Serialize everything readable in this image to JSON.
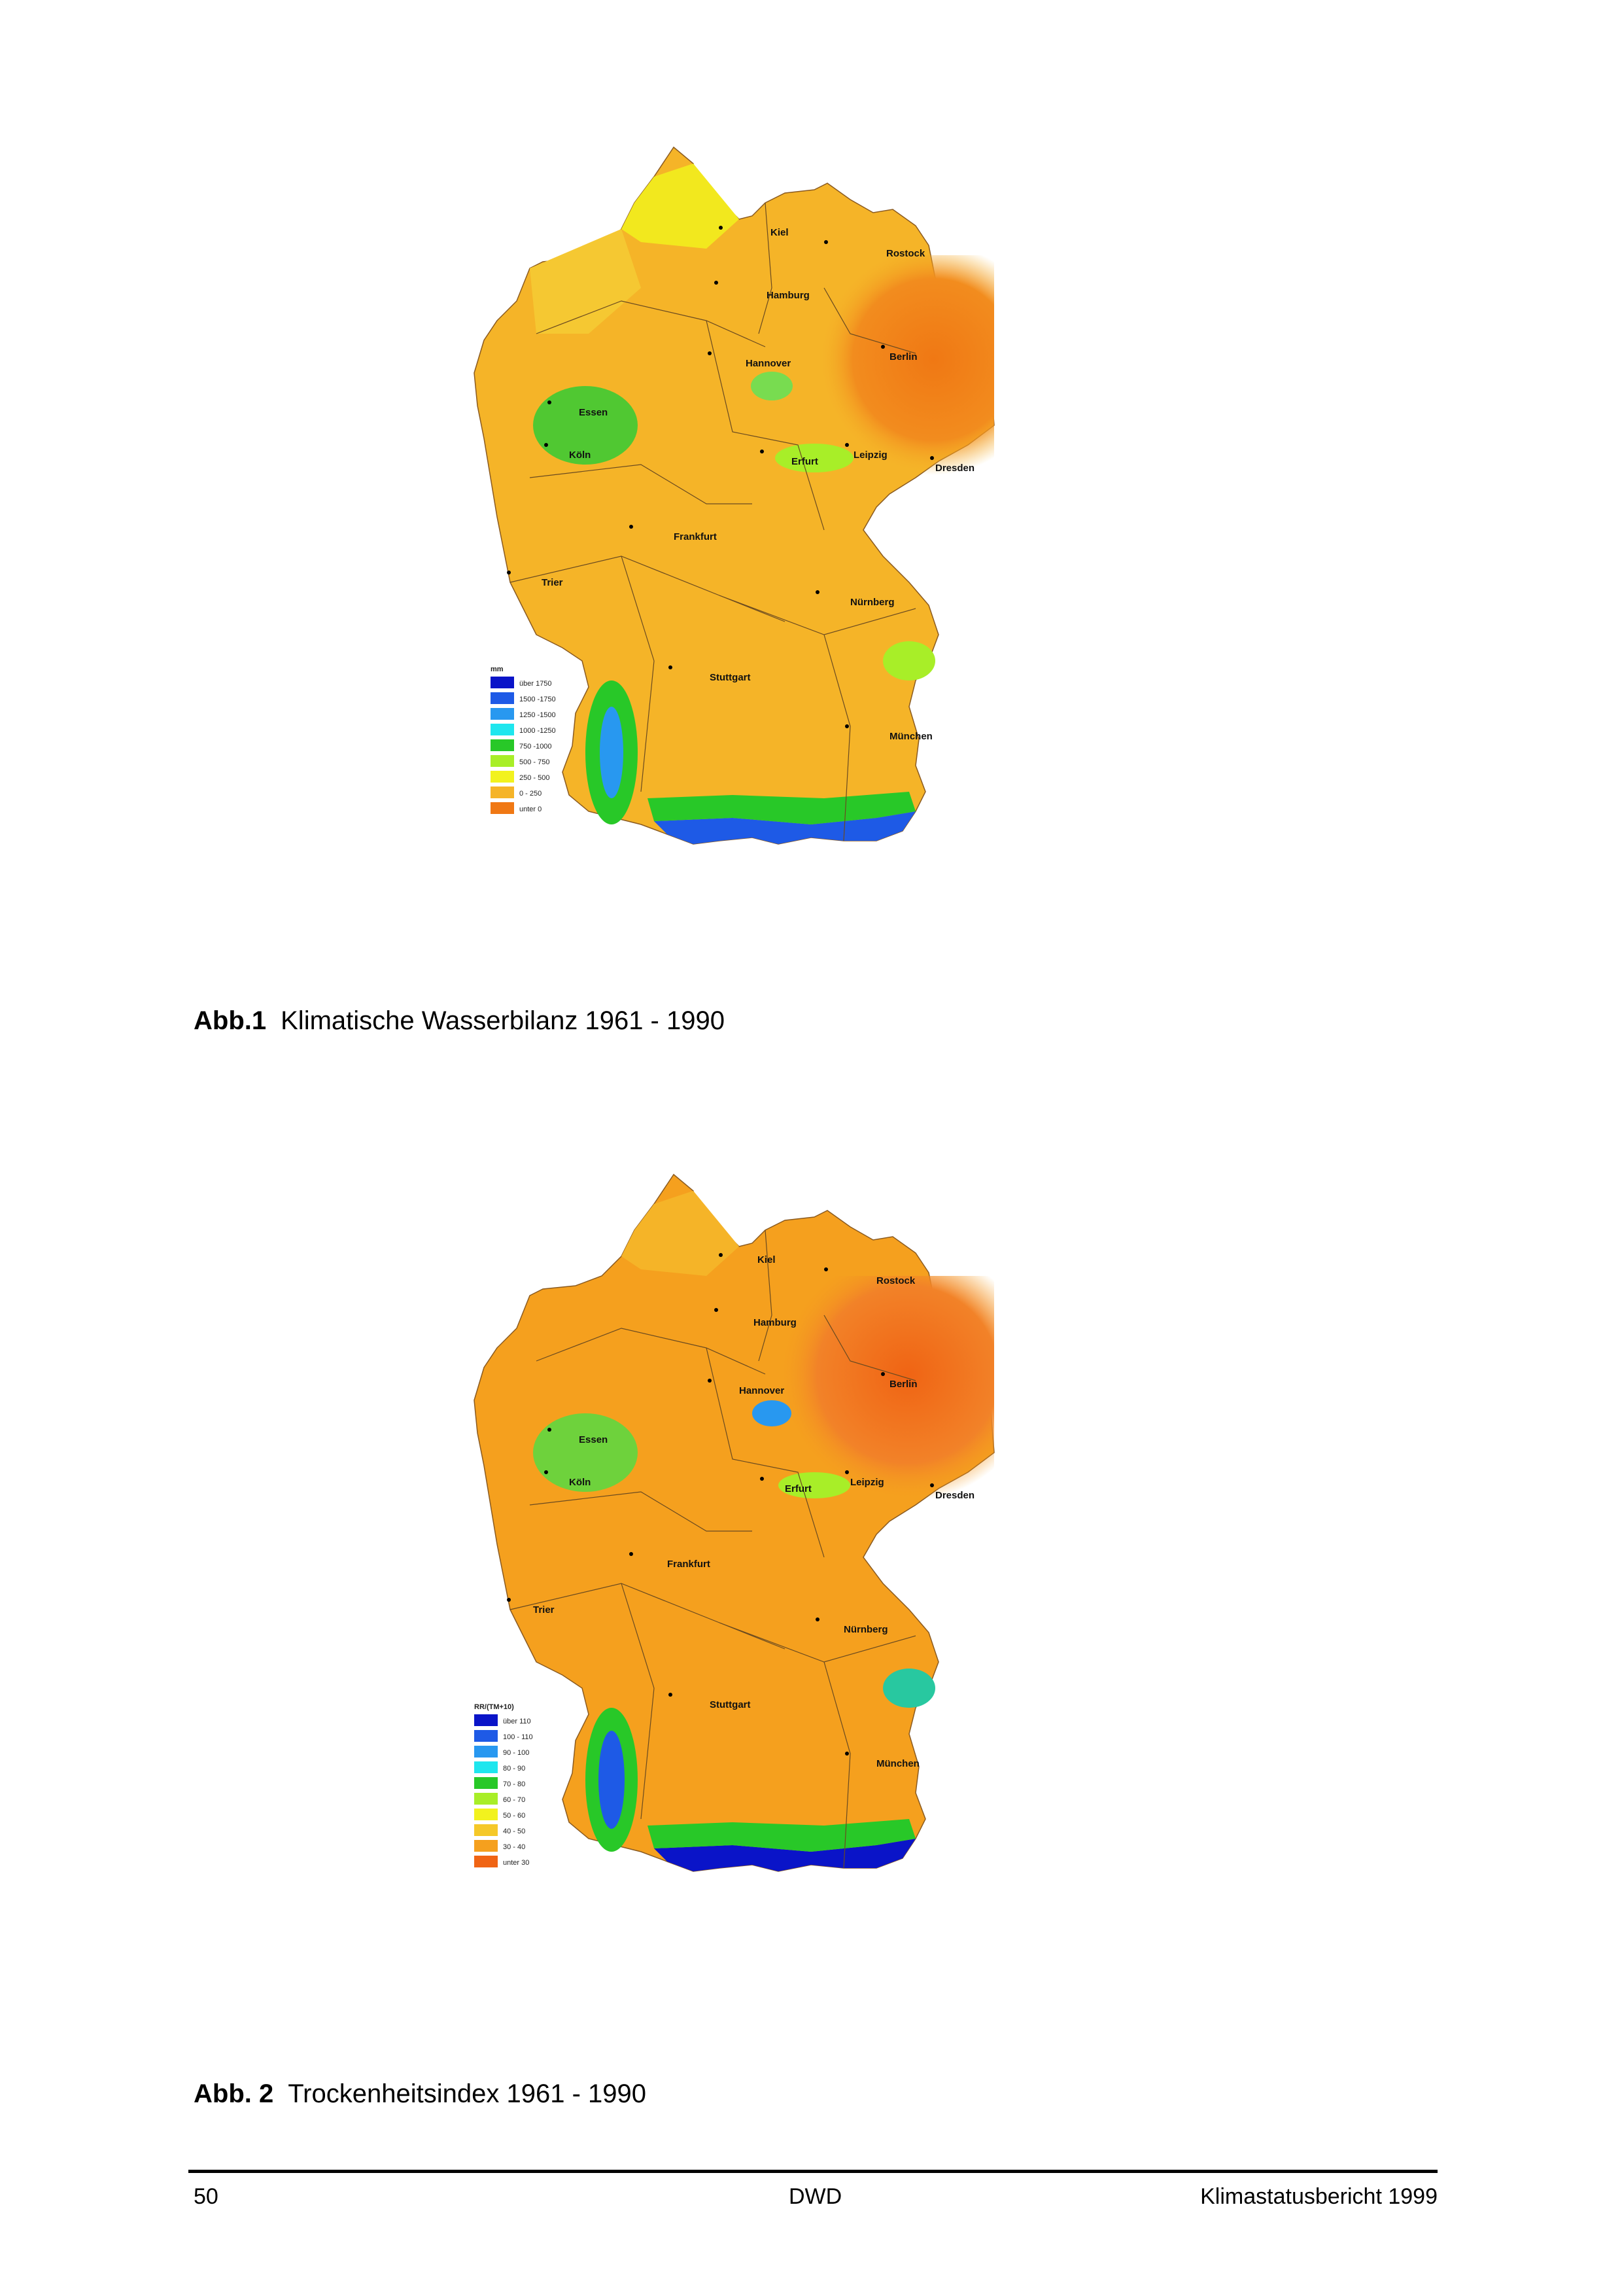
{
  "figures": [
    {
      "id": "map1",
      "caption_number": "Abb.1",
      "caption_text": "Klimatische Wasserbilanz 1961 - 1990",
      "legend_title": "mm",
      "legend": [
        {
          "label": "über  1750",
          "color": "#0a14c8"
        },
        {
          "label": "1500 -1750",
          "color": "#1e5ae6"
        },
        {
          "label": "1250 -1500",
          "color": "#2898f0"
        },
        {
          "label": "1000 -1250",
          "color": "#1ee6ee"
        },
        {
          "label": "750 -1000",
          "color": "#28c828"
        },
        {
          "label": "500 -  750",
          "color": "#a8ee28"
        },
        {
          "label": "250 -  500",
          "color": "#f2f21e"
        },
        {
          "label": "0 -  250",
          "color": "#f5b428"
        },
        {
          "label": "unter     0",
          "color": "#f07814"
        }
      ],
      "cities": [
        "Kiel",
        "Rostock",
        "Hamburg",
        "Hannover",
        "Berlin",
        "Essen",
        "Köln",
        "Erfurt",
        "Leipzig",
        "Dresden",
        "Frankfurt",
        "Trier",
        "Nürnberg",
        "Stuttgart",
        "München"
      ]
    },
    {
      "id": "map2",
      "caption_number": "Abb. 2",
      "caption_text": "Trockenheitsindex 1961 - 1990",
      "legend_title": "RR/(TM+10)",
      "legend": [
        {
          "label": "über  110",
          "color": "#0a14c8"
        },
        {
          "label": "100 - 110",
          "color": "#1e5ae6"
        },
        {
          "label": "90 - 100",
          "color": "#2898f0"
        },
        {
          "label": "80 -  90",
          "color": "#1ee6ee"
        },
        {
          "label": "70 -  80",
          "color": "#28c828"
        },
        {
          "label": "60 -  70",
          "color": "#a8ee28"
        },
        {
          "label": "50 -  60",
          "color": "#f2f21e"
        },
        {
          "label": "40 -  50",
          "color": "#f5c828"
        },
        {
          "label": "30 -  40",
          "color": "#f5a01e"
        },
        {
          "label": "unter   30",
          "color": "#f06414"
        }
      ],
      "cities": [
        "Kiel",
        "Rostock",
        "Hamburg",
        "Hannover",
        "Berlin",
        "Essen",
        "Köln",
        "Erfurt",
        "Leipzig",
        "Dresden",
        "Frankfurt",
        "Trier",
        "Nürnberg",
        "Stuttgart",
        "München"
      ]
    }
  ],
  "footer": {
    "page_number": "50",
    "center": "DWD",
    "right": "Klimastatusbericht 1999"
  }
}
